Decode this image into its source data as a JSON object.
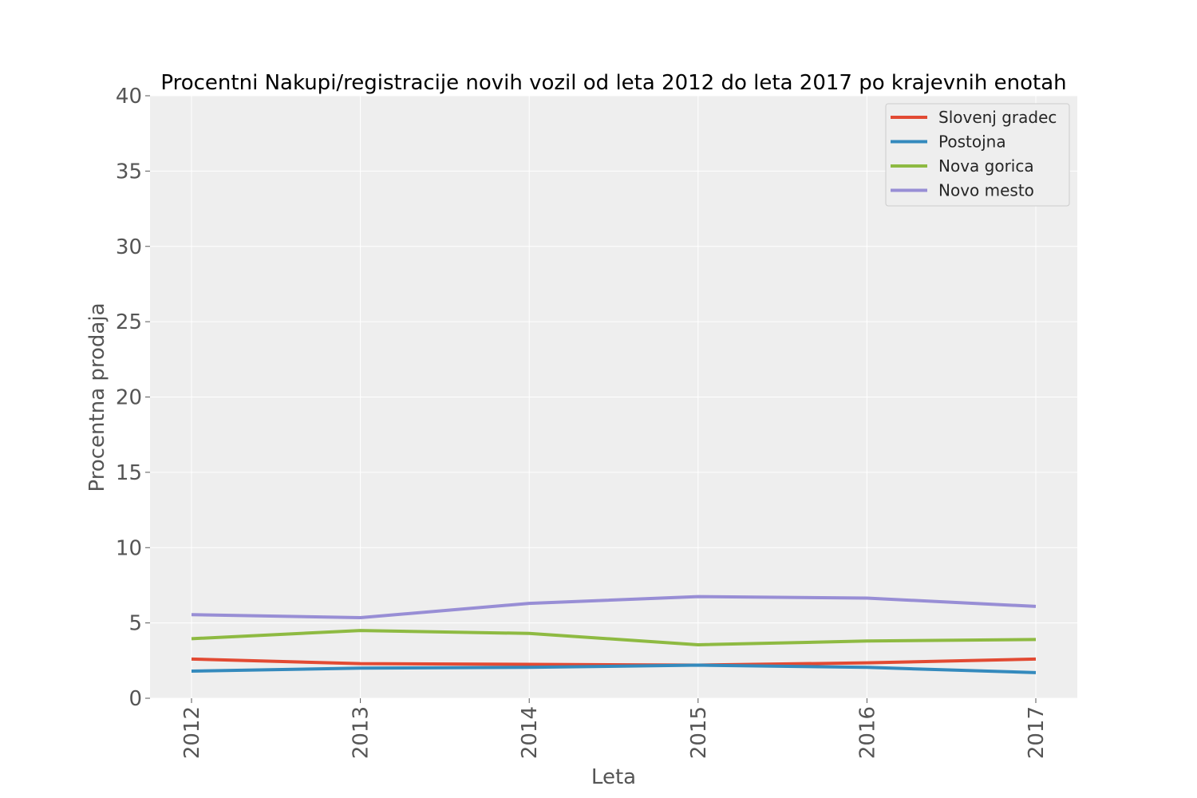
{
  "chart_data": {
    "type": "line",
    "title": "Procentni Nakupi/registracije novih vozil od leta 2012 do leta 2017 po krajevnih enotah",
    "xlabel": "Leta",
    "ylabel": "Procentna prodaja",
    "categories": [
      "2012",
      "2013",
      "2014",
      "2015",
      "2016",
      "2017"
    ],
    "ylim": [
      0,
      40
    ],
    "yticks": [
      "0",
      "5",
      "10",
      "15",
      "20",
      "25",
      "30",
      "35",
      "40"
    ],
    "grid": true,
    "legend_position": "top-right",
    "series": [
      {
        "name": "Slovenj gradec",
        "color": "#E24A33",
        "values": [
          2.6,
          2.3,
          2.25,
          2.2,
          2.35,
          2.6
        ]
      },
      {
        "name": "Postojna",
        "color": "#348ABD",
        "values": [
          1.8,
          2.0,
          2.05,
          2.2,
          2.05,
          1.7
        ]
      },
      {
        "name": "Nova gorica",
        "color": "#8EBA42",
        "values": [
          3.95,
          4.5,
          4.3,
          3.55,
          3.8,
          3.9
        ]
      },
      {
        "name": "Novo mesto",
        "color": "#988ED5",
        "values": [
          5.55,
          5.35,
          6.3,
          6.75,
          6.65,
          6.1
        ]
      }
    ]
  }
}
